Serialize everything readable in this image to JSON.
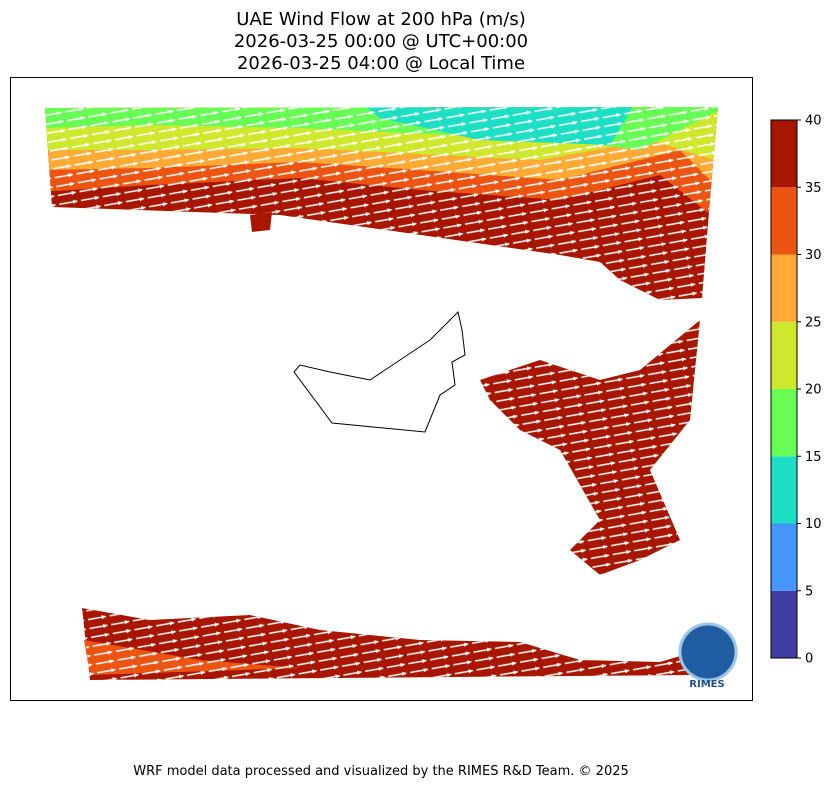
{
  "title": [
    "UAE Wind Flow at 200 hPa (m/s)",
    "2026-03-25 00:00 @ UTC+00:00",
    "2026-03-25 04:00 @ Local Time"
  ],
  "colorbar": {
    "levels": [
      0,
      5,
      10,
      15,
      20,
      25,
      30,
      35,
      40
    ],
    "colors": [
      "#3f3ea3",
      "#4595ff",
      "#1ddfc3",
      "#67fd55",
      "#cde82d",
      "#ffaa35",
      "#ed5412",
      "#a81600"
    ]
  },
  "logo_text": "RIMES",
  "footer": "WRF model data processed and visualized by the RIMES R&D Team. © 2025"
}
